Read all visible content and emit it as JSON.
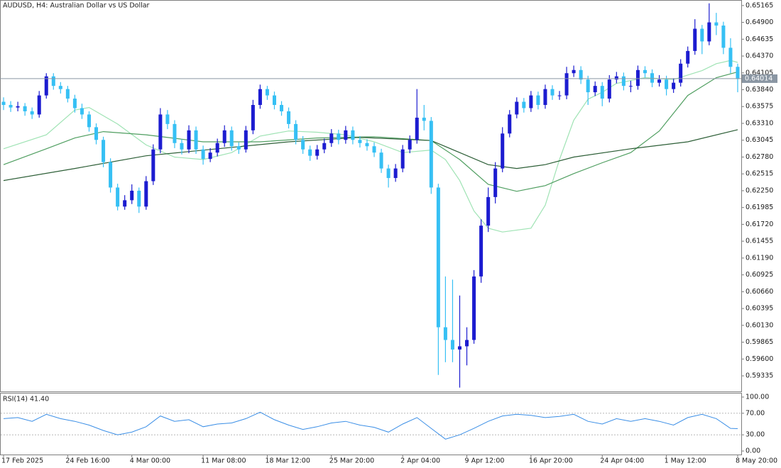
{
  "chart_data": {
    "type": "candlestick",
    "title": "AUDUSD, H4:  Australian Dollar vs US Dollar",
    "up_color": "#1c1cd0",
    "down_color": "#36c0f4",
    "ylim": [
      0.5909,
      0.6523
    ],
    "yticks": [
      0.65165,
      {
        "value": 0.649,
        "label": "0.64900"
      },
      0.64635,
      {
        "value": 0.6437,
        "label": "0.64370"
      },
      0.64105,
      {
        "value": 0.6384,
        "label": "0.63840"
      },
      0.63575,
      {
        "value": 0.6331,
        "label": "0.63310"
      },
      0.63045,
      {
        "value": 0.6278,
        "label": "0.62780"
      },
      0.62515,
      {
        "value": 0.6225,
        "label": "0.62250"
      },
      0.61985,
      {
        "value": 0.6172,
        "label": "0.61720"
      },
      0.61455,
      {
        "value": 0.6119,
        "label": "0.61190"
      },
      0.60925,
      {
        "value": 0.6066,
        "label": "0.60660"
      },
      0.60395,
      {
        "value": 0.6013,
        "label": "0.60130"
      },
      0.59865,
      {
        "value": 0.596,
        "label": "0.59600"
      },
      0.59335
    ],
    "xlim": [
      -0.5,
      103.5
    ],
    "xticks": [
      {
        "value": 0,
        "label": "17 Feb 2025"
      },
      {
        "value": 9,
        "label": "24 Feb 16:00"
      },
      {
        "value": 18,
        "label": "4 Mar 00:00"
      },
      {
        "value": 28,
        "label": "11 Mar 08:00"
      },
      {
        "value": 37,
        "label": "18 Mar 12:00"
      },
      {
        "value": 46,
        "label": "25 Mar 20:00"
      },
      {
        "value": 56,
        "label": "2 Apr 04:00"
      },
      {
        "value": 65,
        "label": "9 Apr 12:00"
      },
      {
        "value": 74,
        "label": "16 Apr 20:00"
      },
      {
        "value": 84,
        "label": "24 Apr 04:00"
      },
      {
        "value": 93,
        "label": "1 May 12:00"
      },
      {
        "value": 103,
        "label": "8 May 20:00"
      }
    ],
    "current_price": 0.64014,
    "current_price_color": "#8a96a3",
    "ohlc": [
      [
        0.6365,
        0.6372,
        0.6352,
        0.636
      ],
      [
        0.636,
        0.6366,
        0.6349,
        0.6356
      ],
      [
        0.6356,
        0.6365,
        0.635,
        0.6358
      ],
      [
        0.6358,
        0.6363,
        0.6343,
        0.635
      ],
      [
        0.635,
        0.6356,
        0.6338,
        0.6345
      ],
      [
        0.6345,
        0.6382,
        0.634,
        0.6375
      ],
      [
        0.6375,
        0.641,
        0.637,
        0.6405
      ],
      [
        0.6405,
        0.641,
        0.6384,
        0.639
      ],
      [
        0.639,
        0.6396,
        0.6378,
        0.6385
      ],
      [
        0.6385,
        0.639,
        0.6364,
        0.637
      ],
      [
        0.637,
        0.6376,
        0.6348,
        0.6355
      ],
      [
        0.6355,
        0.6362,
        0.6338,
        0.6345
      ],
      [
        0.6345,
        0.635,
        0.6318,
        0.6325
      ],
      [
        0.6325,
        0.6331,
        0.6298,
        0.6305
      ],
      [
        0.6305,
        0.631,
        0.6262,
        0.627
      ],
      [
        0.627,
        0.6276,
        0.6222,
        0.623
      ],
      [
        0.623,
        0.6236,
        0.6194,
        0.62
      ],
      [
        0.62,
        0.6218,
        0.6195,
        0.621
      ],
      [
        0.621,
        0.6235,
        0.6204,
        0.6225
      ],
      [
        0.6225,
        0.623,
        0.619,
        0.62
      ],
      [
        0.62,
        0.6248,
        0.6195,
        0.624
      ],
      [
        0.624,
        0.6298,
        0.6234,
        0.629
      ],
      [
        0.629,
        0.6355,
        0.6284,
        0.6345
      ],
      [
        0.6345,
        0.6352,
        0.6322,
        0.633
      ],
      [
        0.633,
        0.6336,
        0.6292,
        0.63
      ],
      [
        0.63,
        0.6306,
        0.6282,
        0.629
      ],
      [
        0.629,
        0.6328,
        0.6284,
        0.632
      ],
      [
        0.632,
        0.6326,
        0.6283,
        0.629
      ],
      [
        0.629,
        0.6296,
        0.6266,
        0.6275
      ],
      [
        0.6275,
        0.6292,
        0.627,
        0.6285
      ],
      [
        0.6285,
        0.6307,
        0.6279,
        0.63
      ],
      [
        0.63,
        0.6328,
        0.6294,
        0.632
      ],
      [
        0.632,
        0.6326,
        0.6288,
        0.6295
      ],
      [
        0.6295,
        0.6301,
        0.6283,
        0.629
      ],
      [
        0.629,
        0.6327,
        0.6285,
        0.632
      ],
      [
        0.632,
        0.6368,
        0.6314,
        0.636
      ],
      [
        0.636,
        0.6392,
        0.6354,
        0.6385
      ],
      [
        0.6385,
        0.639,
        0.6368,
        0.6375
      ],
      [
        0.6375,
        0.6381,
        0.6353,
        0.636
      ],
      [
        0.636,
        0.6366,
        0.6343,
        0.635
      ],
      [
        0.635,
        0.6356,
        0.6323,
        0.633
      ],
      [
        0.633,
        0.6336,
        0.6298,
        0.6305
      ],
      [
        0.6305,
        0.6311,
        0.6283,
        0.629
      ],
      [
        0.629,
        0.6296,
        0.6272,
        0.628
      ],
      [
        0.628,
        0.6297,
        0.6274,
        0.629
      ],
      [
        0.629,
        0.6307,
        0.6284,
        0.63
      ],
      [
        0.63,
        0.6322,
        0.6294,
        0.6315
      ],
      [
        0.6315,
        0.6321,
        0.6298,
        0.6305
      ],
      [
        0.6305,
        0.6327,
        0.6299,
        0.632
      ],
      [
        0.632,
        0.6326,
        0.6298,
        0.6305
      ],
      [
        0.6305,
        0.6311,
        0.6293,
        0.63
      ],
      [
        0.63,
        0.6306,
        0.6288,
        0.6295
      ],
      [
        0.6295,
        0.6301,
        0.6278,
        0.6285
      ],
      [
        0.6285,
        0.6291,
        0.6253,
        0.626
      ],
      [
        0.626,
        0.6266,
        0.623,
        0.6245
      ],
      [
        0.6245,
        0.6267,
        0.6239,
        0.626
      ],
      [
        0.626,
        0.6297,
        0.6254,
        0.629
      ],
      [
        0.629,
        0.6312,
        0.6284,
        0.6305
      ],
      [
        0.6305,
        0.6385,
        0.6299,
        0.634
      ],
      [
        0.634,
        0.636,
        0.632,
        0.6335
      ],
      [
        0.6335,
        0.6341,
        0.622,
        0.623
      ],
      [
        0.623,
        0.6236,
        0.5935,
        0.601
      ],
      [
        0.601,
        0.609,
        0.5955,
        0.599
      ],
      [
        0.599,
        0.6085,
        0.5955,
        0.5975
      ],
      [
        0.5975,
        0.606,
        0.5915,
        0.598
      ],
      [
        0.598,
        0.601,
        0.595,
        0.599
      ],
      [
        0.599,
        0.61,
        0.5984,
        0.609
      ],
      [
        0.609,
        0.618,
        0.608,
        0.617
      ],
      [
        0.617,
        0.623,
        0.616,
        0.6215
      ],
      [
        0.6215,
        0.627,
        0.6205,
        0.626
      ],
      [
        0.626,
        0.6325,
        0.6254,
        0.6315
      ],
      [
        0.6315,
        0.6352,
        0.6309,
        0.6345
      ],
      [
        0.6345,
        0.6372,
        0.6339,
        0.6365
      ],
      [
        0.6365,
        0.6371,
        0.6348,
        0.6355
      ],
      [
        0.6355,
        0.6382,
        0.6349,
        0.6375
      ],
      [
        0.6375,
        0.6381,
        0.6353,
        0.636
      ],
      [
        0.636,
        0.6392,
        0.6354,
        0.6385
      ],
      [
        0.6385,
        0.6391,
        0.6368,
        0.6375
      ],
      [
        0.6375,
        0.6382,
        0.6368,
        0.6375
      ],
      [
        0.6375,
        0.642,
        0.6369,
        0.641
      ],
      [
        0.641,
        0.6422,
        0.6404,
        0.6415
      ],
      [
        0.6415,
        0.6421,
        0.6393,
        0.64
      ],
      [
        0.64,
        0.6406,
        0.636,
        0.638
      ],
      [
        0.638,
        0.6397,
        0.6374,
        0.639
      ],
      [
        0.639,
        0.6396,
        0.6358,
        0.637
      ],
      [
        0.637,
        0.6407,
        0.6364,
        0.64
      ],
      [
        0.64,
        0.6412,
        0.6394,
        0.6405
      ],
      [
        0.6405,
        0.6411,
        0.6383,
        0.639
      ],
      [
        0.639,
        0.6398,
        0.638,
        0.639
      ],
      [
        0.639,
        0.6422,
        0.6384,
        0.6415
      ],
      [
        0.6415,
        0.6421,
        0.6403,
        0.641
      ],
      [
        0.641,
        0.6416,
        0.6388,
        0.6395
      ],
      [
        0.6395,
        0.6407,
        0.6389,
        0.64
      ],
      [
        0.64,
        0.6406,
        0.6375,
        0.6385
      ],
      [
        0.6385,
        0.6402,
        0.6379,
        0.6395
      ],
      [
        0.6395,
        0.6432,
        0.6389,
        0.6425
      ],
      [
        0.6425,
        0.6452,
        0.6419,
        0.6445
      ],
      [
        0.6445,
        0.6495,
        0.6439,
        0.648
      ],
      [
        0.648,
        0.6486,
        0.644,
        0.646
      ],
      [
        0.646,
        0.652,
        0.6454,
        0.649
      ],
      [
        0.649,
        0.6505,
        0.647,
        0.6485
      ],
      [
        0.6485,
        0.6491,
        0.644,
        0.645
      ],
      [
        0.645,
        0.6465,
        0.641,
        0.642
      ],
      [
        0.642,
        0.6425,
        0.638,
        0.6401
      ]
    ],
    "overlays": [
      {
        "color": "#9fe3b4",
        "x": [
          0,
          6,
          10,
          12,
          16,
          20,
          24,
          28,
          32,
          36,
          40,
          44,
          48,
          52,
          56,
          60,
          62,
          64,
          66,
          68,
          70,
          74,
          76,
          78,
          80,
          82,
          84,
          86,
          90,
          94,
          98,
          100,
          102,
          103
        ],
        "values": [
          0.6291,
          0.6313,
          0.6352,
          0.6356,
          0.633,
          0.6297,
          0.6278,
          0.6274,
          0.6285,
          0.6311,
          0.6319,
          0.6317,
          0.6313,
          0.6302,
          0.6285,
          0.6289,
          0.6274,
          0.6241,
          0.6193,
          0.6166,
          0.616,
          0.6166,
          0.6202,
          0.6274,
          0.6336,
          0.6369,
          0.638,
          0.6394,
          0.6403,
          0.64,
          0.6414,
          0.6425,
          0.643,
          0.6427
        ]
      },
      {
        "color": "#4f9e60",
        "x": [
          0,
          6,
          10,
          14,
          20,
          28,
          36,
          44,
          52,
          60,
          64,
          68,
          72,
          76,
          80,
          84,
          88,
          92,
          96,
          100,
          103
        ],
        "values": [
          0.6266,
          0.6291,
          0.6308,
          0.6318,
          0.6313,
          0.6302,
          0.6302,
          0.6308,
          0.631,
          0.6304,
          0.6274,
          0.6235,
          0.6224,
          0.6233,
          0.6252,
          0.6269,
          0.6285,
          0.6319,
          0.6375,
          0.6403,
          0.6412
        ]
      },
      {
        "color": "#2c5e36",
        "x": [
          0,
          10,
          20,
          30,
          40,
          50,
          60,
          64,
          68,
          72,
          76,
          80,
          88,
          96,
          103
        ],
        "values": [
          0.6241,
          0.626,
          0.628,
          0.6291,
          0.6302,
          0.6309,
          0.6304,
          0.6285,
          0.6266,
          0.626,
          0.6266,
          0.6278,
          0.6291,
          0.6302,
          0.6321
        ]
      }
    ],
    "rsi": {
      "label": "RSI(14) 41.40",
      "color": "#3a8ee6",
      "ylim": [
        -6.5,
        106.5
      ],
      "yticks": [
        {
          "value": 100,
          "label": "100.00"
        },
        {
          "value": 70,
          "label": "70.00"
        },
        {
          "value": 30,
          "label": "30.00"
        },
        {
          "value": 0,
          "label": "0.00"
        }
      ],
      "levels": [
        70,
        30
      ],
      "x": [
        0,
        2,
        4,
        6,
        8,
        10,
        12,
        14,
        16,
        18,
        20,
        22,
        24,
        26,
        28,
        30,
        32,
        34,
        36,
        38,
        40,
        42,
        44,
        46,
        48,
        50,
        52,
        54,
        56,
        58,
        60,
        62,
        64,
        66,
        68,
        70,
        72,
        74,
        76,
        78,
        80,
        82,
        84,
        86,
        88,
        90,
        92,
        94,
        96,
        98,
        100,
        102,
        103
      ],
      "values": [
        60,
        62,
        55,
        68,
        60,
        55,
        48,
        38,
        30,
        35,
        45,
        65,
        55,
        58,
        45,
        50,
        52,
        60,
        72,
        58,
        48,
        40,
        45,
        52,
        55,
        48,
        44,
        35,
        50,
        62,
        42,
        22,
        30,
        42,
        55,
        65,
        68,
        66,
        62,
        64,
        68,
        55,
        50,
        60,
        55,
        60,
        55,
        48,
        62,
        68,
        60,
        42,
        41.4
      ]
    }
  }
}
